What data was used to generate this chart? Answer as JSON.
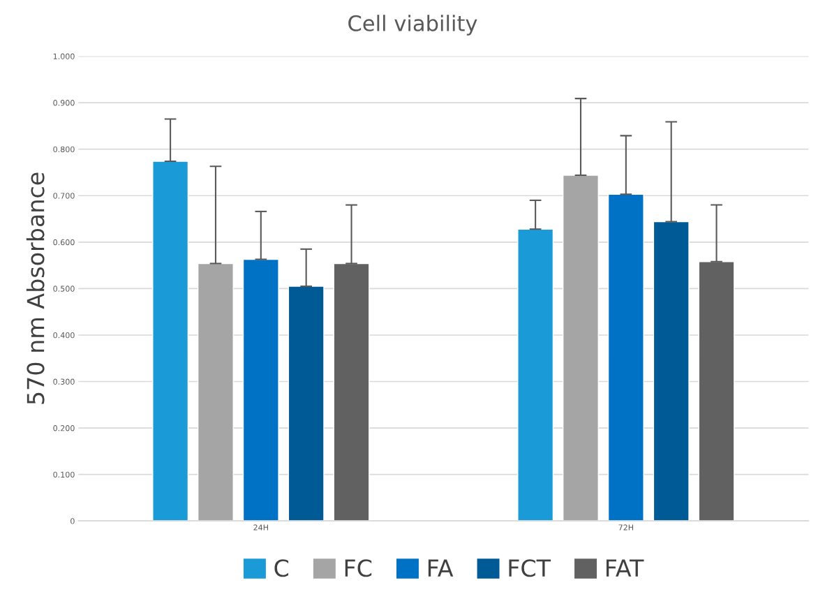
{
  "chart_data": {
    "type": "bar",
    "title": "Cell viability",
    "ylabel": "570 nm Absorbance",
    "categories": [
      "24H",
      "72H"
    ],
    "series": [
      {
        "name": "C",
        "color": "#1a9bd7",
        "values": [
          0.774,
          0.628
        ],
        "errors": [
          [
            0.774,
            0.865
          ],
          [
            0.628,
            0.69
          ]
        ]
      },
      {
        "name": "FC",
        "color": "#a5a5a5",
        "values": [
          0.554,
          0.744
        ],
        "errors": [
          [
            0.554,
            0.763
          ],
          [
            0.744,
            0.909
          ]
        ]
      },
      {
        "name": "FA",
        "color": "#0072c6",
        "values": [
          0.563,
          0.703
        ],
        "errors": [
          [
            0.563,
            0.666
          ],
          [
            0.703,
            0.829
          ]
        ]
      },
      {
        "name": "FCT",
        "color": "#005a96",
        "values": [
          0.505,
          0.644
        ],
        "errors": [
          [
            0.505,
            0.585
          ],
          [
            0.644,
            0.859
          ]
        ]
      },
      {
        "name": "FAT",
        "color": "#616161",
        "values": [
          0.554,
          0.558
        ],
        "errors": [
          [
            0.554,
            0.68
          ],
          [
            0.558,
            0.68
          ]
        ]
      }
    ],
    "ylim": [
      0,
      1.0
    ],
    "yticks": [
      0,
      {
        "value": 0.1,
        "label": "0.100"
      },
      {
        "value": 0.2,
        "label": "0.200"
      },
      {
        "value": 0.3,
        "label": "0.300"
      },
      {
        "value": 0.4,
        "label": "0.400"
      },
      {
        "value": 0.5,
        "label": "0.500"
      },
      {
        "value": 0.6,
        "label": "0.600"
      },
      {
        "value": 0.7,
        "label": "0.700"
      },
      {
        "value": 0.8,
        "label": "0.800"
      },
      {
        "value": 0.9,
        "label": "0.900"
      },
      {
        "value": 1.0,
        "label": "1.000"
      }
    ],
    "grid": "y",
    "legend": "bottom"
  }
}
